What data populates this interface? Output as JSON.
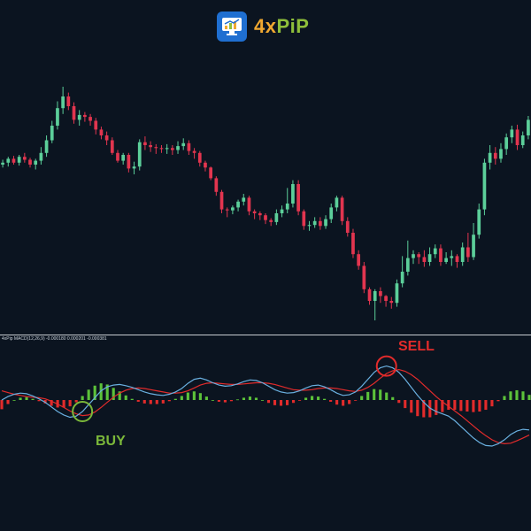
{
  "brand": {
    "name_part1": "4x",
    "name_part2": "PiP",
    "icon": "chart-monitor-icon",
    "colors": {
      "orange": "#f0a830",
      "green": "#8fbf3a",
      "blue": "#1f6fd1"
    }
  },
  "indicator": {
    "label": "4xPip MACD(12,26,9) -0.000180 0.000201 -0.000381"
  },
  "signals": {
    "buy_label": "BUY",
    "sell_label": "SELL"
  },
  "colors": {
    "background": "#0b1420",
    "bull_candle": "#5ccf9a",
    "bear_candle": "#e2354f",
    "macd_line": "#6ab0e0",
    "signal_line": "#e22b2b",
    "hist_positive": "#5cc23a",
    "hist_negative": "#e22b2b",
    "buy": "#7bb83a",
    "sell": "#e22b2b",
    "separator": "#c8ccd0"
  },
  "chart_data": [
    {
      "type": "candlestick",
      "title": "",
      "ohlc": [
        [
          260,
          262,
          257,
          265
        ],
        [
          262,
          266,
          258,
          268
        ],
        [
          266,
          262,
          260,
          269
        ],
        [
          262,
          268,
          259,
          270
        ],
        [
          268,
          265,
          262,
          272
        ],
        [
          265,
          260,
          257,
          267
        ],
        [
          260,
          264,
          255,
          266
        ],
        [
          264,
          272,
          260,
          278
        ],
        [
          272,
          285,
          268,
          290
        ],
        [
          285,
          300,
          282,
          305
        ],
        [
          300,
          318,
          296,
          325
        ],
        [
          318,
          330,
          312,
          340
        ],
        [
          330,
          320,
          316,
          334
        ],
        [
          320,
          306,
          302,
          324
        ],
        [
          306,
          311,
          300,
          316
        ],
        [
          311,
          309,
          304,
          314
        ],
        [
          309,
          305,
          300,
          312
        ],
        [
          305,
          296,
          291,
          308
        ],
        [
          296,
          290,
          286,
          299
        ],
        [
          290,
          285,
          280,
          294
        ],
        [
          285,
          272,
          270,
          288
        ],
        [
          272,
          264,
          262,
          275
        ],
        [
          264,
          270,
          260,
          272
        ],
        [
          270,
          256,
          252,
          272
        ],
        [
          256,
          258,
          250,
          263
        ],
        [
          258,
          283,
          254,
          286
        ],
        [
          283,
          280,
          275,
          289
        ],
        [
          280,
          278,
          273,
          284
        ],
        [
          278,
          277,
          271,
          281
        ],
        [
          277,
          276,
          272,
          280
        ],
        [
          276,
          277,
          271,
          281
        ],
        [
          277,
          275,
          270,
          280
        ],
        [
          275,
          279,
          271,
          284
        ],
        [
          279,
          282,
          275,
          287
        ],
        [
          282,
          274,
          270,
          285
        ],
        [
          274,
          272,
          266,
          277
        ],
        [
          272,
          262,
          258,
          274
        ],
        [
          262,
          257,
          253,
          264
        ],
        [
          257,
          246,
          244,
          258
        ],
        [
          246,
          232,
          228,
          248
        ],
        [
          232,
          214,
          210,
          234
        ],
        [
          214,
          213,
          206,
          216
        ],
        [
          213,
          216,
          209,
          218
        ],
        [
          216,
          222,
          212,
          224
        ],
        [
          222,
          226,
          218,
          230
        ],
        [
          226,
          212,
          208,
          228
        ],
        [
          212,
          210,
          204,
          214
        ],
        [
          210,
          208,
          203,
          212
        ],
        [
          208,
          203,
          199,
          210
        ],
        [
          203,
          201,
          197,
          205
        ],
        [
          201,
          210,
          198,
          214
        ],
        [
          210,
          214,
          206,
          218
        ],
        [
          214,
          220,
          210,
          236
        ],
        [
          220,
          240,
          216,
          244
        ],
        [
          240,
          212,
          208,
          244
        ],
        [
          212,
          197,
          193,
          214
        ],
        [
          197,
          198,
          192,
          202
        ],
        [
          198,
          202,
          195,
          206
        ],
        [
          202,
          197,
          193,
          206
        ],
        [
          197,
          204,
          194,
          208
        ],
        [
          204,
          216,
          200,
          220
        ],
        [
          216,
          226,
          212,
          228
        ],
        [
          226,
          202,
          198,
          228
        ],
        [
          202,
          190,
          186,
          206
        ],
        [
          190,
          168,
          164,
          194
        ],
        [
          168,
          156,
          152,
          172
        ],
        [
          156,
          132,
          128,
          160
        ],
        [
          132,
          120,
          116,
          134
        ],
        [
          120,
          130,
          100,
          132
        ],
        [
          130,
          125,
          118,
          134
        ],
        [
          125,
          120,
          114,
          126
        ],
        [
          120,
          118,
          112,
          124
        ],
        [
          118,
          138,
          114,
          142
        ],
        [
          138,
          150,
          134,
          166
        ],
        [
          150,
          164,
          146,
          182
        ],
        [
          164,
          168,
          158,
          172
        ],
        [
          168,
          165,
          158,
          170
        ],
        [
          165,
          160,
          155,
          172
        ],
        [
          160,
          168,
          156,
          175
        ],
        [
          168,
          174,
          164,
          178
        ],
        [
          174,
          160,
          156,
          178
        ],
        [
          160,
          164,
          158,
          170
        ],
        [
          164,
          166,
          156,
          172
        ],
        [
          166,
          160,
          154,
          168
        ],
        [
          160,
          175,
          156,
          180
        ],
        [
          175,
          165,
          160,
          190
        ],
        [
          165,
          188,
          162,
          200
        ],
        [
          188,
          214,
          184,
          220
        ],
        [
          214,
          262,
          208,
          266
        ],
        [
          262,
          272,
          255,
          280
        ],
        [
          272,
          266,
          260,
          278
        ],
        [
          266,
          276,
          262,
          282
        ],
        [
          276,
          288,
          270,
          292
        ],
        [
          288,
          296,
          282,
          300
        ],
        [
          296,
          280,
          275,
          301
        ],
        [
          280,
          290,
          277,
          294
        ],
        [
          290,
          306,
          286,
          310
        ]
      ],
      "note_axis": "price scale not shown"
    },
    {
      "type": "line",
      "title": "",
      "series": [
        {
          "name": "",
          "values": [
            0.0,
            0.6,
            1.0,
            1.2,
            1.1,
            0.7,
            0.2,
            -0.4,
            -1.2,
            -2.0,
            -2.6,
            -3.0,
            -2.8,
            -2.0,
            -0.8,
            0.4,
            1.6,
            2.3,
            2.6,
            2.7,
            2.5,
            2.2,
            1.8,
            1.4,
            1.1,
            0.9,
            0.8,
            1.0,
            1.4,
            2.0,
            2.9,
            3.6,
            3.8,
            3.5,
            3.0,
            2.6,
            2.4,
            2.5,
            2.8,
            3.2,
            3.5,
            3.4,
            3.0,
            2.4,
            1.8,
            1.4,
            1.2,
            1.3,
            1.6,
            2.1,
            2.5,
            2.6,
            2.3,
            1.8,
            1.2,
            0.8,
            0.9,
            1.4,
            2.4,
            3.6,
            4.8,
            5.6,
            5.9,
            5.6,
            4.8,
            3.6,
            2.2,
            0.8,
            -0.4,
            -1.4,
            -2.0,
            -2.4,
            -2.8,
            -3.6,
            -4.6,
            -5.6,
            -6.6,
            -7.4,
            -7.9,
            -8.0,
            -7.6,
            -6.9,
            -6.0,
            -5.4,
            -5.1,
            -5.2
          ]
        },
        {
          "name": "",
          "values": [
            1.6,
            1.3,
            1.0,
            0.8,
            0.6,
            0.5,
            0.4,
            0.2,
            -0.2,
            -0.7,
            -1.3,
            -1.9,
            -2.4,
            -2.7,
            -2.6,
            -2.1,
            -1.3,
            -0.4,
            0.5,
            1.2,
            1.7,
            2.0,
            2.1,
            2.0,
            1.8,
            1.6,
            1.4,
            1.2,
            1.2,
            1.3,
            1.6,
            2.1,
            2.6,
            2.9,
            3.0,
            2.9,
            2.8,
            2.7,
            2.7,
            2.8,
            2.9,
            3.0,
            3.0,
            2.9,
            2.7,
            2.4,
            2.1,
            1.8,
            1.7,
            1.7,
            1.8,
            2.0,
            2.1,
            2.1,
            2.0,
            1.8,
            1.6,
            1.5,
            1.7,
            2.2,
            2.9,
            3.8,
            4.6,
            5.1,
            5.3,
            5.0,
            4.4,
            3.6,
            2.6,
            1.6,
            0.6,
            -0.3,
            -1.1,
            -1.9,
            -2.7,
            -3.6,
            -4.5,
            -5.4,
            -6.2,
            -6.9,
            -7.4,
            -7.6,
            -7.5,
            -7.1,
            -6.6,
            -6.1
          ]
        }
      ],
      "histogram": [
        -1.6,
        -0.7,
        0.0,
        0.4,
        0.5,
        0.2,
        -0.2,
        -0.6,
        -1.0,
        -1.3,
        -1.3,
        -1.1,
        -0.4,
        0.7,
        1.8,
        2.5,
        2.9,
        2.7,
        2.1,
        1.5,
        0.8,
        0.2,
        -0.3,
        -0.6,
        -0.7,
        -0.7,
        -0.6,
        -0.2,
        0.2,
        0.7,
        1.3,
        1.5,
        1.2,
        0.6,
        0.0,
        -0.3,
        -0.4,
        -0.2,
        0.1,
        0.4,
        0.6,
        0.4,
        0.0,
        -0.5,
        -0.9,
        -1.0,
        -0.9,
        -0.5,
        -0.1,
        0.4,
        0.7,
        0.6,
        0.2,
        -0.3,
        -0.8,
        -1.0,
        -0.7,
        -0.1,
        0.7,
        1.4,
        1.9,
        1.8,
        1.3,
        0.5,
        -0.5,
        -1.4,
        -2.2,
        -2.8,
        -3.0,
        -3.0,
        -2.6,
        -2.1,
        -1.7,
        -1.7,
        -1.9,
        -2.0,
        -2.1,
        -2.0,
        -1.7,
        -1.1,
        -0.2,
        0.7,
        1.5,
        1.7,
        1.5,
        0.9
      ],
      "signals": [
        {
          "label": "BUY",
          "index": 13
        },
        {
          "label": "SELL",
          "index": 62
        }
      ]
    }
  ]
}
